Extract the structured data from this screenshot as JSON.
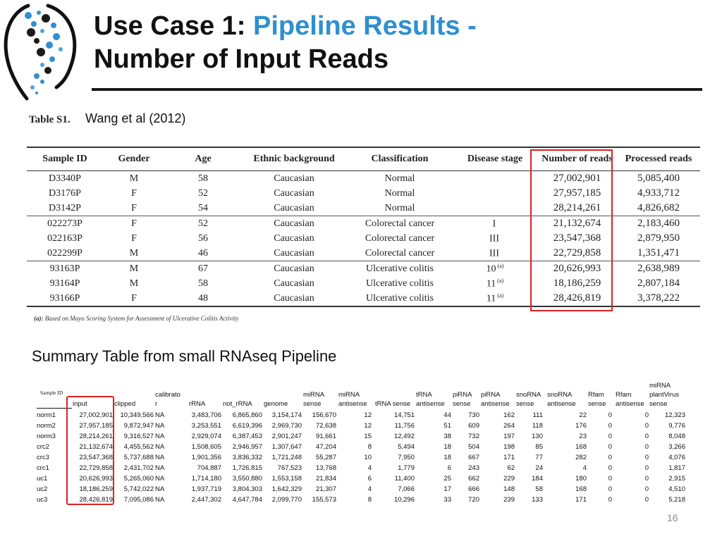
{
  "slide": {
    "title_part1": "Use Case 1: ",
    "title_part2": "Pipeline Results -",
    "title_line2": "Number of Input Reads",
    "accent_color": "#2f8fd0",
    "table_label": "Table S1.",
    "citation": "Wang et al (2012)",
    "subtitle": "Summary Table from small RNAseq Pipeline",
    "page_number": "16",
    "logo_icon": "dna-helix-dots-logo",
    "highlight_color": "#e02020"
  },
  "table1": {
    "headers": [
      "Sample ID",
      "Gender",
      "Age",
      "Ethnic background",
      "Classification",
      "Disease stage",
      "Number of reads",
      "Processed reads"
    ],
    "rows": [
      {
        "id": "D3340P",
        "gender": "M",
        "age": "58",
        "ethnic": "Caucasian",
        "class": "Normal",
        "stage": "",
        "stage_note": "",
        "reads": "27,002,901",
        "processed": "5,085,400"
      },
      {
        "id": "D3176P",
        "gender": "F",
        "age": "52",
        "ethnic": "Caucasian",
        "class": "Normal",
        "stage": "",
        "stage_note": "",
        "reads": "27,957,185",
        "processed": "4,933,712"
      },
      {
        "id": "D3142P",
        "gender": "F",
        "age": "54",
        "ethnic": "Caucasian",
        "class": "Normal",
        "stage": "",
        "stage_note": "",
        "reads": "28,214,261",
        "processed": "4,826,682"
      },
      {
        "id": "022273P",
        "gender": "F",
        "age": "52",
        "ethnic": "Caucasian",
        "class": "Colorectal cancer",
        "stage": "I",
        "stage_note": "",
        "reads": "21,132,674",
        "processed": "2,183,460"
      },
      {
        "id": "022163P",
        "gender": "F",
        "age": "56",
        "ethnic": "Caucasian",
        "class": "Colorectal cancer",
        "stage": "III",
        "stage_note": "",
        "reads": "23,547,368",
        "processed": "2,879,950"
      },
      {
        "id": "022299P",
        "gender": "M",
        "age": "46",
        "ethnic": "Caucasian",
        "class": "Colorectal cancer",
        "stage": "III",
        "stage_note": "",
        "reads": "22,729,858",
        "processed": "1,351,471"
      },
      {
        "id": "93163P",
        "gender": "M",
        "age": "67",
        "ethnic": "Caucasian",
        "class": "Ulcerative colitis",
        "stage": "10",
        "stage_note": "(a)",
        "reads": "20,626,993",
        "processed": "2,638,989"
      },
      {
        "id": "93164P",
        "gender": "M",
        "age": "58",
        "ethnic": "Caucasian",
        "class": "Ulcerative colitis",
        "stage": "11",
        "stage_note": "(a)",
        "reads": "18,186,259",
        "processed": "2,807,184"
      },
      {
        "id": "93166P",
        "gender": "F",
        "age": "48",
        "ethnic": "Caucasian",
        "class": "Ulcerative colitis",
        "stage": "11",
        "stage_note": "(a)",
        "reads": "28,426,819",
        "processed": "3,378,222"
      }
    ],
    "footnote_mark": "(a):",
    "footnote_text": " Based on Mayo Scoring System for Assessment of Ulcerative Colitis Activity"
  },
  "table2": {
    "headers": {
      "sample_id": "Sample ID",
      "input": "input",
      "clipped": "clipped",
      "calibrator": "calibrato\nr",
      "rrna": "rRNA",
      "not_rrna": "not_rRNA",
      "genome": "genome",
      "mirna_sense": "miRNA\nsense",
      "mirna_antisense": "miRNA\nantisense",
      "trna_sense": "tRNA sense",
      "trna_antisense": "tRNA\nantisense",
      "pirna_sense": "piRNA\nsense",
      "pirna_antisense": "piRNA\nantisense",
      "snorna_sense": "snoRNA\nsense",
      "snorna_antisense": "snoRNA\nantisense",
      "rfam_sense": "Rfam\nsense",
      "rfam_antisense": "Rfam\nantisense",
      "plantvirus_sense": "miRNA\nplantVirus\nsense"
    },
    "rows": [
      [
        "norm1",
        "27,002,901",
        "10,349,566",
        "NA",
        "3,483,706",
        "6,865,860",
        "3,154,174",
        "156,670",
        "12",
        "14,751",
        "44",
        "730",
        "162",
        "111",
        "22",
        "0",
        "0",
        "12,323"
      ],
      [
        "norm2",
        "27,957,185",
        "9,872,947",
        "NA",
        "3,253,551",
        "6,619,396",
        "2,969,730",
        "72,638",
        "12",
        "11,756",
        "51",
        "609",
        "264",
        "118",
        "176",
        "0",
        "0",
        "9,776"
      ],
      [
        "norm3",
        "28,214,261",
        "9,316,527",
        "NA",
        "2,929,074",
        "6,387,453",
        "2,901,247",
        "91,661",
        "15",
        "12,492",
        "38",
        "732",
        "197",
        "130",
        "23",
        "0",
        "0",
        "8,048"
      ],
      [
        "crc2",
        "21,132,674",
        "4,455,562",
        "NA",
        "1,508,605",
        "2,946,957",
        "1,307,647",
        "47,204",
        "8",
        "5,494",
        "18",
        "504",
        "198",
        "85",
        "168",
        "0",
        "0",
        "3,266"
      ],
      [
        "crc3",
        "23,547,368",
        "5,737,688",
        "NA",
        "1,901,356",
        "3,836,332",
        "1,721,248",
        "55,287",
        "10",
        "7,950",
        "18",
        "667",
        "171",
        "77",
        "282",
        "0",
        "0",
        "4,076"
      ],
      [
        "crc1",
        "22,729,858",
        "2,431,702",
        "NA",
        "704,887",
        "1,726,815",
        "767,523",
        "13,768",
        "4",
        "1,779",
        "6",
        "243",
        "62",
        "24",
        "4",
        "0",
        "0",
        "1,817"
      ],
      [
        "uc1",
        "20,626,993",
        "5,265,060",
        "NA",
        "1,714,180",
        "3,550,880",
        "1,553,158",
        "21,834",
        "6",
        "11,400",
        "25",
        "662",
        "229",
        "184",
        "180",
        "0",
        "0",
        "2,915"
      ],
      [
        "uc2",
        "18,186,259",
        "5,742,022",
        "NA",
        "1,937,719",
        "3,804,303",
        "1,642,329",
        "21,307",
        "4",
        "7,066",
        "17",
        "666",
        "148",
        "58",
        "168",
        "0",
        "0",
        "4,510"
      ],
      [
        "uc3",
        "28,426,819",
        "7,095,086",
        "NA",
        "2,447,302",
        "4,647,784",
        "2,099,770",
        "155,573",
        "8",
        "10,296",
        "33",
        "720",
        "239",
        "133",
        "171",
        "0",
        "0",
        "5,218"
      ]
    ]
  }
}
